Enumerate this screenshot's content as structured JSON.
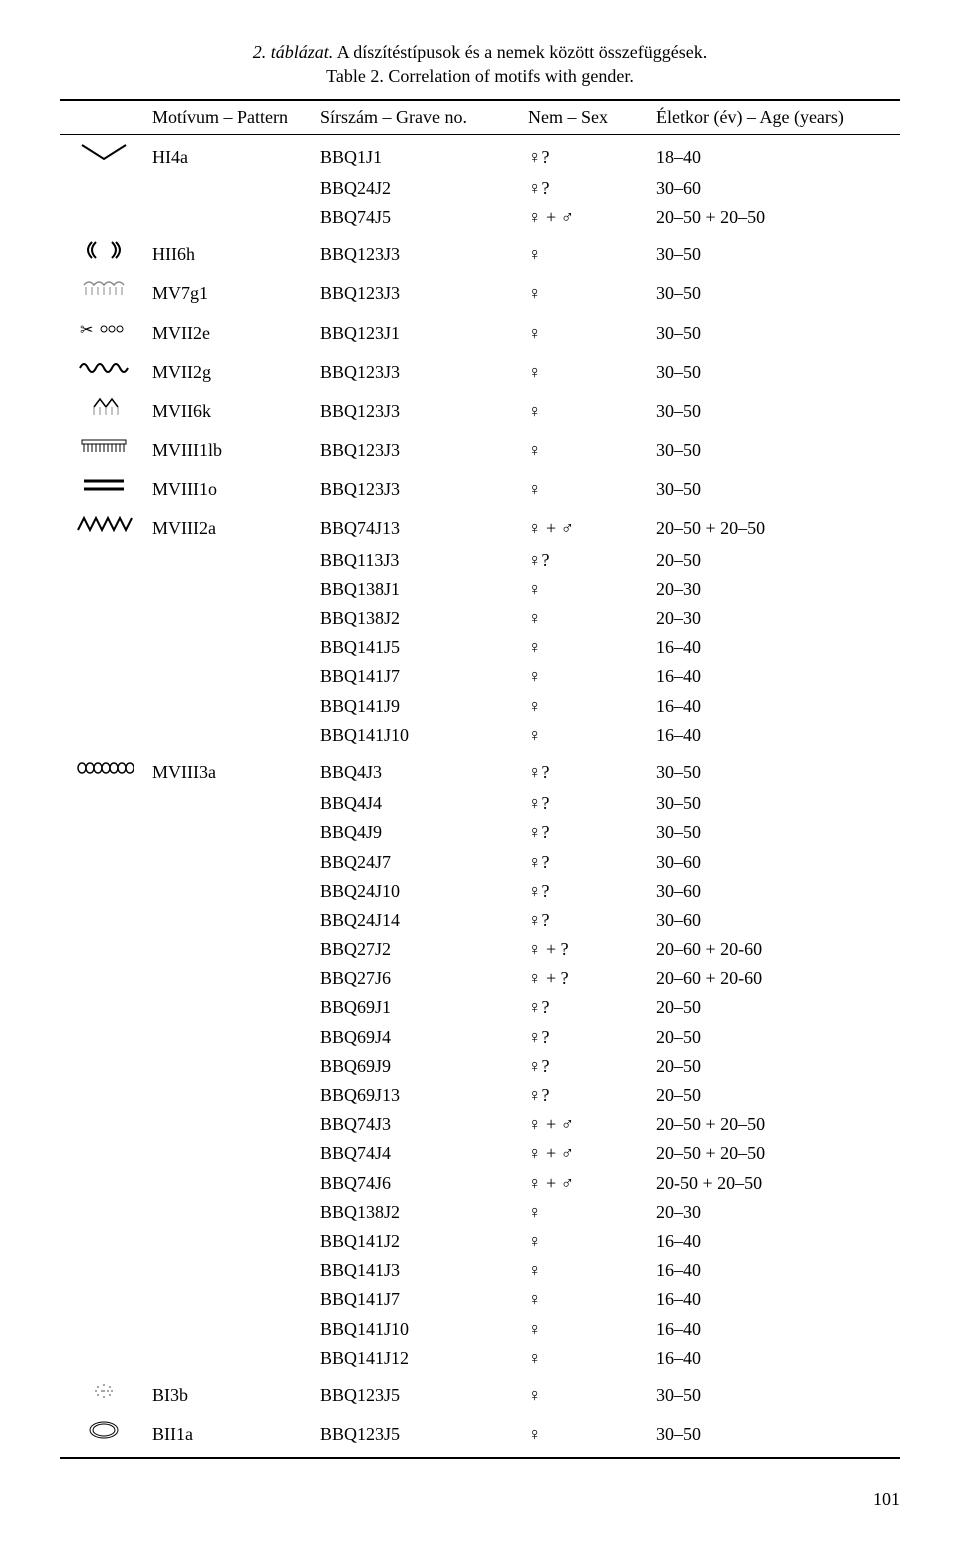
{
  "caption": {
    "line1_italic": "2. táblázat.",
    "line1_rest": " A díszítéstípusok és a nemek között összefüggések.",
    "line2": "Table 2. Correlation of motifs with gender."
  },
  "headers": {
    "motif": "Motívum – Pattern",
    "grave": "Sírszám – Grave no.",
    "sex": "Nem – Sex",
    "age": "Életkor (év) – Age (years)"
  },
  "rows": [
    {
      "group_start": true,
      "icon": "v-shape",
      "motif": "HI4a",
      "grave": "BBQ1J1",
      "sex": "♀?",
      "age": "18–40"
    },
    {
      "group_start": false,
      "icon": "",
      "motif": "",
      "grave": "BBQ24J2",
      "sex": "♀?",
      "age": "30–60"
    },
    {
      "group_start": false,
      "icon": "",
      "motif": "",
      "grave": "BBQ74J5",
      "sex": "♀ + ♂",
      "age": "20–50 + 20–50"
    },
    {
      "group_start": true,
      "icon": "brackets",
      "motif": "HII6h",
      "grave": "BBQ123J3",
      "sex": "♀",
      "age": "30–50"
    },
    {
      "group_start": true,
      "icon": "fringe1",
      "motif": "MV7g1",
      "grave": "BBQ123J3",
      "sex": "♀",
      "age": "30–50"
    },
    {
      "group_start": true,
      "icon": "scissors",
      "motif": "MVII2e",
      "grave": "BBQ123J1",
      "sex": "♀",
      "age": "30–50"
    },
    {
      "group_start": true,
      "icon": "waves",
      "motif": "MVII2g",
      "grave": "BBQ123J3",
      "sex": "♀",
      "age": "30–50"
    },
    {
      "group_start": true,
      "icon": "diamond-fringe",
      "motif": "MVII6k",
      "grave": "BBQ123J3",
      "sex": "♀",
      "age": "30–50"
    },
    {
      "group_start": true,
      "icon": "comb",
      "motif": "MVIII1lb",
      "grave": "BBQ123J3",
      "sex": "♀",
      "age": "30–50"
    },
    {
      "group_start": true,
      "icon": "bars",
      "motif": "MVIII1o",
      "grave": "BBQ123J3",
      "sex": "♀",
      "age": "30–50"
    },
    {
      "group_start": true,
      "icon": "zigzag",
      "motif": "MVIII2a",
      "grave": "BBQ74J13",
      "sex": "♀ + ♂",
      "age": "20–50 + 20–50"
    },
    {
      "group_start": false,
      "icon": "",
      "motif": "",
      "grave": "BBQ113J3",
      "sex": "♀?",
      "age": "20–50"
    },
    {
      "group_start": false,
      "icon": "",
      "motif": "",
      "grave": "BBQ138J1",
      "sex": "♀",
      "age": "20–30"
    },
    {
      "group_start": false,
      "icon": "",
      "motif": "",
      "grave": "BBQ138J2",
      "sex": "♀",
      "age": "20–30"
    },
    {
      "group_start": false,
      "icon": "",
      "motif": "",
      "grave": "BBQ141J5",
      "sex": "♀",
      "age": "16–40"
    },
    {
      "group_start": false,
      "icon": "",
      "motif": "",
      "grave": "BBQ141J7",
      "sex": "♀",
      "age": "16–40"
    },
    {
      "group_start": false,
      "icon": "",
      "motif": "",
      "grave": "BBQ141J9",
      "sex": "♀",
      "age": "16–40"
    },
    {
      "group_start": false,
      "icon": "",
      "motif": "",
      "grave": "BBQ141J10",
      "sex": "♀",
      "age": "16–40"
    },
    {
      "group_start": true,
      "icon": "chain",
      "motif": "MVIII3a",
      "grave": "BBQ4J3",
      "sex": "♀?",
      "age": "30–50"
    },
    {
      "group_start": false,
      "icon": "",
      "motif": "",
      "grave": "BBQ4J4",
      "sex": "♀?",
      "age": "30–50"
    },
    {
      "group_start": false,
      "icon": "",
      "motif": "",
      "grave": "BBQ4J9",
      "sex": "♀?",
      "age": "30–50"
    },
    {
      "group_start": false,
      "icon": "",
      "motif": "",
      "grave": "BBQ24J7",
      "sex": "♀?",
      "age": "30–60"
    },
    {
      "group_start": false,
      "icon": "",
      "motif": "",
      "grave": "BBQ24J10",
      "sex": "♀?",
      "age": "30–60"
    },
    {
      "group_start": false,
      "icon": "",
      "motif": "",
      "grave": "BBQ24J14",
      "sex": "♀?",
      "age": "30–60"
    },
    {
      "group_start": false,
      "icon": "",
      "motif": "",
      "grave": "BBQ27J2",
      "sex": "♀ + ?",
      "age": "20–60 + 20-60"
    },
    {
      "group_start": false,
      "icon": "",
      "motif": "",
      "grave": "BBQ27J6",
      "sex": "♀ + ?",
      "age": "20–60 + 20-60"
    },
    {
      "group_start": false,
      "icon": "",
      "motif": "",
      "grave": "BBQ69J1",
      "sex": "♀?",
      "age": "20–50"
    },
    {
      "group_start": false,
      "icon": "",
      "motif": "",
      "grave": "BBQ69J4",
      "sex": "♀?",
      "age": "20–50"
    },
    {
      "group_start": false,
      "icon": "",
      "motif": "",
      "grave": "BBQ69J9",
      "sex": "♀?",
      "age": "20–50"
    },
    {
      "group_start": false,
      "icon": "",
      "motif": "",
      "grave": "BBQ69J13",
      "sex": "♀?",
      "age": "20–50"
    },
    {
      "group_start": false,
      "icon": "",
      "motif": "",
      "grave": "BBQ74J3",
      "sex": "♀ + ♂",
      "age": "20–50 + 20–50"
    },
    {
      "group_start": false,
      "icon": "",
      "motif": "",
      "grave": "BBQ74J4",
      "sex": "♀ + ♂",
      "age": "20–50 + 20–50"
    },
    {
      "group_start": false,
      "icon": "",
      "motif": "",
      "grave": "BBQ74J6",
      "sex": "♀ + ♂",
      "age": "20-50 + 20–50"
    },
    {
      "group_start": false,
      "icon": "",
      "motif": "",
      "grave": "BBQ138J2",
      "sex": "♀",
      "age": "20–30"
    },
    {
      "group_start": false,
      "icon": "",
      "motif": "",
      "grave": "BBQ141J2",
      "sex": "♀",
      "age": "16–40"
    },
    {
      "group_start": false,
      "icon": "",
      "motif": "",
      "grave": "BBQ141J3",
      "sex": "♀",
      "age": "16–40"
    },
    {
      "group_start": false,
      "icon": "",
      "motif": "",
      "grave": "BBQ141J7",
      "sex": "♀",
      "age": "16–40"
    },
    {
      "group_start": false,
      "icon": "",
      "motif": "",
      "grave": "BBQ141J10",
      "sex": "♀",
      "age": "16–40"
    },
    {
      "group_start": false,
      "icon": "",
      "motif": "",
      "grave": "BBQ141J12",
      "sex": "♀",
      "age": "16–40"
    },
    {
      "group_start": true,
      "icon": "dots",
      "motif": "BI3b",
      "grave": "BBQ123J5",
      "sex": "♀",
      "age": "30–50"
    },
    {
      "group_start": true,
      "icon": "ring",
      "motif": "BII1a",
      "grave": "BBQ123J5",
      "sex": "♀",
      "age": "30–50",
      "last": true
    }
  ],
  "page_number": "101",
  "icons": {
    "v-shape": "<svg class='svgicon' viewBox='0 0 60 24'><polyline points='8,4 30,18 52,4' fill='none' stroke='#000' stroke-width='2'/></svg>",
    "brackets": "<svg class='svgicon' viewBox='0 0 60 24'><path d='M18 4 Q10 12 18 20' fill='none' stroke='#000' stroke-width='2'/><path d='M22 4 Q14 12 22 20' fill='none' stroke='#000' stroke-width='2'/><path d='M38 4 Q46 12 38 20' fill='none' stroke='#000' stroke-width='2'/><path d='M42 4 Q50 12 42 20' fill='none' stroke='#000' stroke-width='2'/></svg>",
    "fringe1": "<svg class='svgicon' viewBox='0 0 60 24'><path d='M10 8 Q15 2 20 8 Q25 2 30 8 Q35 2 40 8 Q45 2 50 8' fill='none' stroke='#888' stroke-width='1.5'/><line x1='12' y1='10' x2='12' y2='18' stroke='#888'/><line x1='18' y1='10' x2='18' y2='18' stroke='#888'/><line x1='24' y1='10' x2='24' y2='18' stroke='#888'/><line x1='30' y1='10' x2='30' y2='18' stroke='#888'/><line x1='36' y1='10' x2='36' y2='18' stroke='#888'/><line x1='42' y1='10' x2='42' y2='18' stroke='#888'/><line x1='48' y1='10' x2='48' y2='18' stroke='#888'/></svg>",
    "scissors": "<svg class='svgicon' viewBox='0 0 60 24'><text x='6' y='18' font-size='16' font-family='serif'>✂</text><circle cx='30' cy='12' r='3' fill='none' stroke='#000'/><circle cx='38' cy='12' r='3' fill='none' stroke='#000'/><circle cx='46' cy='12' r='3' fill='none' stroke='#000'/></svg>",
    "waves": "<svg class='svgicon' viewBox='0 0 60 24'><path d='M6 12 Q10 4 14 12 Q18 20 22 12 Q26 4 30 12 Q34 20 38 12 Q42 4 46 12 Q50 20 54 12' fill='none' stroke='#000' stroke-width='2'/></svg>",
    "diamond-fringe": "<svg class='svgicon' viewBox='0 0 60 24'><polyline points='20,12 26,4 32,12 38,4 44,12' fill='none' stroke='#000' stroke-width='1.5'/><line x1='20' y1='12' x2='20' y2='20' stroke='#888'/><line x1='26' y1='12' x2='26' y2='20' stroke='#888'/><line x1='32' y1='12' x2='32' y2='20' stroke='#888'/><line x1='38' y1='12' x2='38' y2='20' stroke='#888'/><line x1='44' y1='12' x2='44' y2='20' stroke='#888'/></svg>",
    "comb": "<svg class='svgicon' viewBox='0 0 60 24'><rect x='8' y='6' width='44' height='4' fill='none' stroke='#000'/><line x1='10' y1='10' x2='10' y2='18' stroke='#000'/><line x1='14' y1='10' x2='14' y2='18' stroke='#000'/><line x1='18' y1='10' x2='18' y2='18' stroke='#000'/><line x1='22' y1='10' x2='22' y2='18' stroke='#000'/><line x1='26' y1='10' x2='26' y2='18' stroke='#000'/><line x1='30' y1='10' x2='30' y2='18' stroke='#000'/><line x1='34' y1='10' x2='34' y2='18' stroke='#000'/><line x1='38' y1='10' x2='38' y2='18' stroke='#000'/><line x1='42' y1='10' x2='42' y2='18' stroke='#000'/><line x1='46' y1='10' x2='46' y2='18' stroke='#000'/><line x1='50' y1='10' x2='50' y2='18' stroke='#000'/></svg>",
    "bars": "<svg class='svgicon' viewBox='0 0 60 24'><line x1='10' y1='8' x2='50' y2='8' stroke='#000' stroke-width='3'/><line x1='10' y1='16' x2='50' y2='16' stroke='#000' stroke-width='3'/></svg>",
    "zigzag": "<svg class='svgicon' viewBox='0 0 60 24'><polyline points='4,18 10,6 16,18 22,6 28,18 34,6 40,18 46,6 52,18 58,6' fill='none' stroke='#000' stroke-width='2'/></svg>",
    "chain": "<svg class='svgicon' viewBox='0 0 60 24'><g fill='none' stroke='#000' stroke-width='1.5'><ellipse cx='8' cy='12' rx='4' ry='5'/><ellipse cx='16' cy='12' rx='4' ry='5'/><ellipse cx='24' cy='12' rx='4' ry='5'/><ellipse cx='32' cy='12' rx='4' ry='5'/><ellipse cx='40' cy='12' rx='4' ry='5'/><ellipse cx='48' cy='12' rx='4' ry='5'/><ellipse cx='56' cy='12' rx='4' ry='5'/></g></svg>",
    "dots": "<svg class='svgicon' viewBox='0 0 60 24'><g fill='#888'><circle cx='24' cy='8' r='1'/><circle cx='30' cy='6' r='1'/><circle cx='36' cy='8' r='1'/><circle cx='22' cy='12' r='1'/><circle cx='28' cy='12' r='1'/><circle cx='34' cy='12' r='1'/><circle cx='38' cy='12' r='1'/><circle cx='24' cy='16' r='1'/><circle cx='30' cy='18' r='1'/><circle cx='36' cy='16' r='1'/><circle cx='30' cy='12' r='1'/></g></svg>",
    "ring": "<svg class='svgicon' viewBox='0 0 60 24'><ellipse cx='30' cy='12' rx='14' ry='8' fill='none' stroke='#000' stroke-width='1'/><ellipse cx='30' cy='12' rx='11' ry='6' fill='none' stroke='#000' stroke-width='1'/></svg>"
  }
}
